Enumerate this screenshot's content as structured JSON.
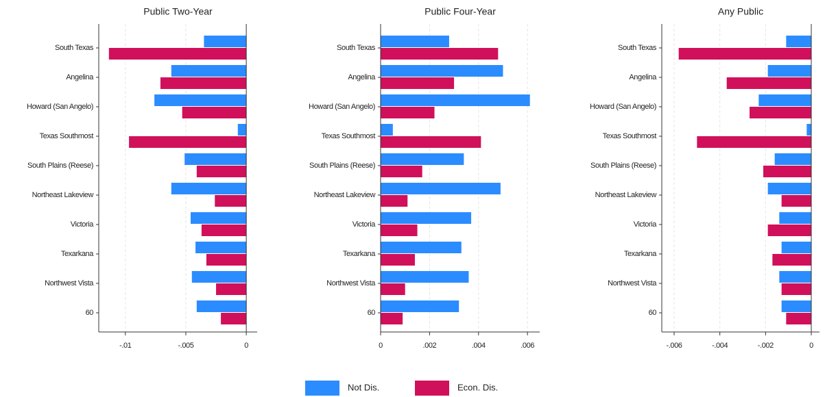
{
  "chart_data": [
    {
      "type": "hbar",
      "title": "Public Two-Year",
      "categories": [
        "South Texas",
        "Angelina",
        "Howard (San Angelo)",
        "Texas Southmost",
        "South Plains (Reese)",
        "Northeast Lakeview",
        "Victoria",
        "Texarkana",
        "Northwest Vista",
        "60"
      ],
      "series": [
        {
          "name": "Not Dis.",
          "color": "#2b8cff",
          "values": [
            -0.0035,
            -0.0062,
            -0.0076,
            -0.0007,
            -0.0051,
            -0.0062,
            -0.0046,
            -0.0042,
            -0.0045,
            -0.0041
          ]
        },
        {
          "name": "Econ. Dis.",
          "color": "#d0105a",
          "values": [
            -0.01136,
            -0.0071,
            -0.0053,
            -0.0097,
            -0.0041,
            -0.0026,
            -0.0037,
            -0.0033,
            -0.0025,
            -0.0021
          ]
        }
      ],
      "xlim": [
        -0.0122,
        0.0009
      ],
      "xticks": [
        {
          "value": -0.01,
          "label": "-.01"
        },
        {
          "value": -0.005,
          "label": "-.005"
        },
        0
      ],
      "grid": true
    },
    {
      "type": "hbar",
      "title": "Public Four-Year",
      "categories": [
        "South Texas",
        "Angelina",
        "Howard (San Angelo)",
        "Texas Southmost",
        "South Plains (Reese)",
        "Northeast Lakeview",
        "Victoria",
        "Texarkana",
        "Northwest Vista",
        "60"
      ],
      "series": [
        {
          "name": "Not Dis.",
          "color": "#2b8cff",
          "values": [
            0.0028,
            0.005,
            0.0061,
            0.0005,
            0.0034,
            0.0049,
            0.0037,
            0.0033,
            0.0036,
            0.0032
          ]
        },
        {
          "name": "Econ. Dis.",
          "color": "#d0105a",
          "values": [
            0.0048,
            0.003,
            0.0022,
            0.0041,
            0.0017,
            0.0011,
            0.0015,
            0.0014,
            0.001,
            0.0009
          ]
        }
      ],
      "xlim": [
        0,
        0.0065
      ],
      "xticks": [
        0,
        {
          "value": 0.002,
          "label": ".002"
        },
        {
          "value": 0.004,
          "label": ".004"
        },
        {
          "value": 0.006,
          "label": ".006"
        }
      ],
      "grid": true
    },
    {
      "type": "hbar",
      "title": "Any Public",
      "categories": [
        "South Texas",
        "Angelina",
        "Howard (San Angelo)",
        "Texas Southmost",
        "South Plains (Reese)",
        "Northeast Lakeview",
        "Victoria",
        "Texarkana",
        "Northwest Vista",
        "60"
      ],
      "series": [
        {
          "name": "Not Dis.",
          "color": "#2b8cff",
          "values": [
            -0.0011,
            -0.0019,
            -0.0023,
            -0.0002,
            -0.0016,
            -0.0019,
            -0.0014,
            -0.0013,
            -0.0014,
            -0.0013
          ]
        },
        {
          "name": "Econ. Dis.",
          "color": "#d0105a",
          "values": [
            -0.0058,
            -0.0037,
            -0.0027,
            -0.005,
            -0.0021,
            -0.0013,
            -0.0019,
            -0.0017,
            -0.0013,
            -0.0011
          ]
        }
      ],
      "xlim": [
        -0.00654,
        0.00036
      ],
      "xticks": [
        {
          "value": -0.006,
          "label": "-.006"
        },
        {
          "value": -0.004,
          "label": "-.004"
        },
        {
          "value": -0.002,
          "label": "-.002"
        },
        0
      ],
      "grid": true
    }
  ]
}
